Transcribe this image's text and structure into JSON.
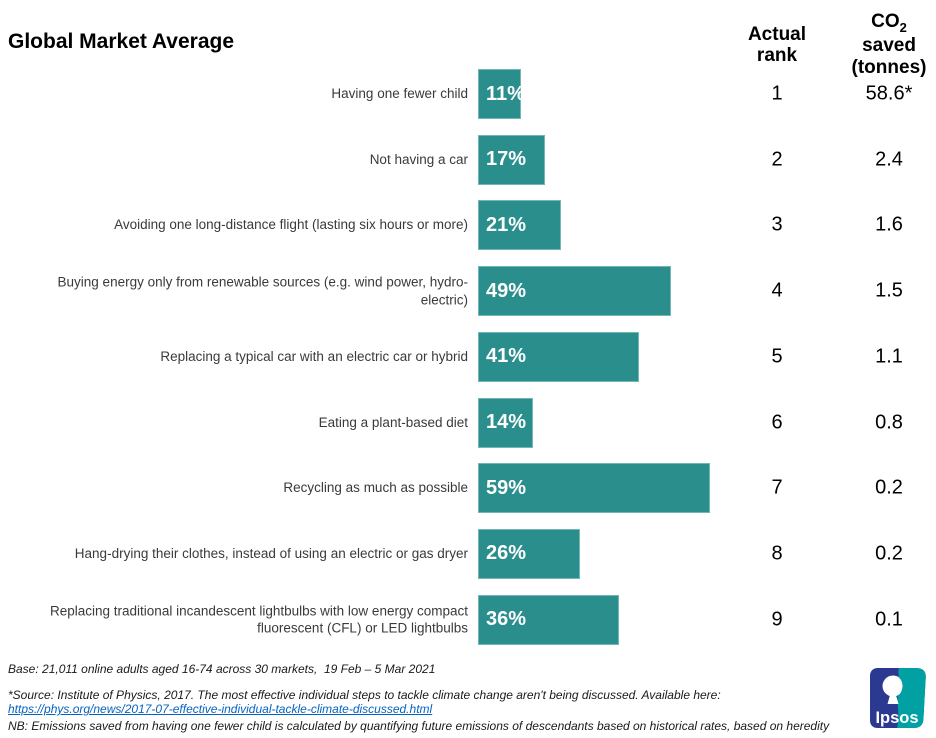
{
  "title": "Global Market Average",
  "columns": {
    "rank_label": "Actual rank",
    "co2_co": "CO",
    "co2_sub": "2",
    "co2_saved": "saved",
    "co2_tonnes": "(tonnes)"
  },
  "chart_data": {
    "type": "bar",
    "orientation": "horizontal",
    "title": "Global Market Average",
    "categories": [
      "Having one fewer child",
      "Not having a car",
      "Avoiding one long-distance flight (lasting six hours or more)",
      "Buying energy only from renewable sources (e.g. wind power, hydro-electric)",
      "Replacing a typical car with an electric car or hybrid",
      "Eating a plant-based diet",
      "Recycling as much as possible",
      "Hang-drying their clothes, instead of using an electric or gas dryer",
      "Replacing traditional incandescent lightbulbs with low energy compact fluorescent (CFL) or LED lightbulbs"
    ],
    "values": [
      11,
      17,
      21,
      49,
      41,
      14,
      59,
      26,
      36
    ],
    "value_labels": [
      "11%",
      "17%",
      "21%",
      "49%",
      "41%",
      "14%",
      "59%",
      "26%",
      "36%"
    ],
    "ranks": [
      "1",
      "2",
      "3",
      "4",
      "5",
      "6",
      "7",
      "8",
      "9"
    ],
    "co2_saved_tonnes": [
      "58.6*",
      "2.4",
      "1.6",
      "1.5",
      "1.1",
      "0.8",
      "0.2",
      "0.2",
      "0.1"
    ],
    "bar_color": "#2A8F8C",
    "xlim": [
      0,
      100
    ],
    "grid": false,
    "legend": false,
    "value_label_position": "inside-start",
    "extra_columns": [
      "Actual rank",
      "CO2 saved (tonnes)"
    ]
  },
  "footer": {
    "base": "Base: 21,011 online adults aged 16-74 across 30 markets,  19 Feb – 5 Mar 2021",
    "source": "*Source: Institute of Physics, 2017. The most effective individual steps to tackle climate change aren't being discussed. Available here:",
    "link": "https://phys.org/news/2017-07-effective-individual-tackle-climate-discussed.html",
    "nb": "NB: Emissions saved from having one fewer child is calculated by quantifying future emissions of descendants based on historical rates, based on heredity"
  },
  "logo": {
    "label": "Ipsos",
    "navy": "#2B3990",
    "teal": "#00A0A3"
  }
}
